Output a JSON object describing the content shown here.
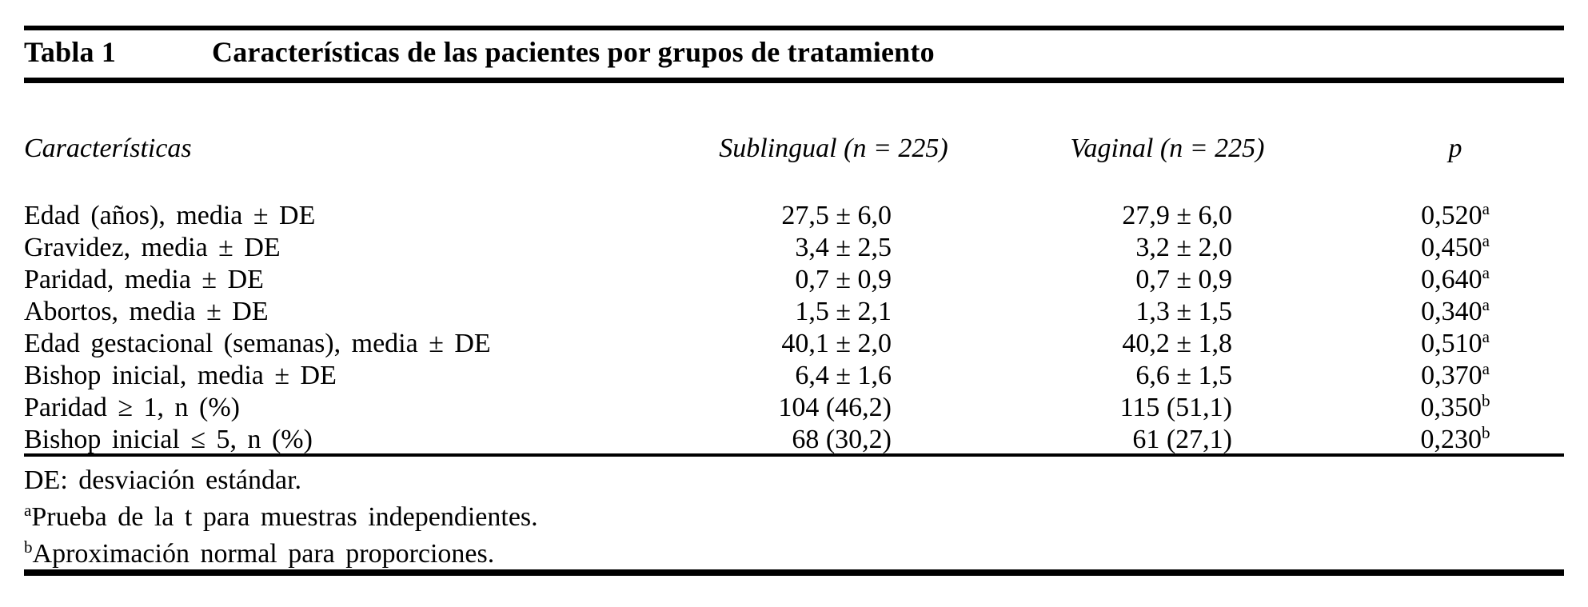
{
  "table": {
    "label": "Tabla 1",
    "title": "Características de las pacientes por grupos de tratamiento",
    "columns": {
      "characteristic": "Características",
      "sublingual": "Sublingual (n = 225)",
      "vaginal": "Vaginal (n = 225)",
      "p": "p"
    },
    "rows": [
      {
        "label": "Edad (años), media ± DE",
        "sublingual": "27,5 ± 6,0",
        "vaginal": "27,9 ± 6,0",
        "p": "0,520",
        "p_sup": "a"
      },
      {
        "label": "Gravidez, media ± DE",
        "sublingual": "3,4 ± 2,5",
        "vaginal": "3,2 ± 2,0",
        "p": "0,450",
        "p_sup": "a"
      },
      {
        "label": "Paridad, media ± DE",
        "sublingual": "0,7 ± 0,9",
        "vaginal": "0,7 ± 0,9",
        "p": "0,640",
        "p_sup": "a"
      },
      {
        "label": "Abortos, media ± DE",
        "sublingual": "1,5 ± 2,1",
        "vaginal": "1,3 ± 1,5",
        "p": "0,340",
        "p_sup": "a"
      },
      {
        "label": "Edad gestacional (semanas), media ± DE",
        "sublingual": "40,1 ± 2,0",
        "vaginal": "40,2 ± 1,8",
        "p": "0,510",
        "p_sup": "a"
      },
      {
        "label": "Bishop inicial, media ± DE",
        "sublingual": "6,4 ± 1,6",
        "vaginal": "6,6 ± 1,5",
        "p": "0,370",
        "p_sup": "a"
      },
      {
        "label": "Paridad ≥ 1, n (%)",
        "sublingual": "104 (46,2)",
        "vaginal": "115 (51,1)",
        "p": "0,350",
        "p_sup": "b"
      },
      {
        "label": "Bishop inicial ≤ 5, n (%)",
        "sublingual": "68 (30,2)",
        "vaginal": "61 (27,1)",
        "p": "0,230",
        "p_sup": "b"
      }
    ],
    "footnotes": [
      {
        "sup": "",
        "text": "DE: desviación estándar."
      },
      {
        "sup": "a",
        "text": "Prueba de la t para muestras independientes."
      },
      {
        "sup": "b",
        "text": "Aproximación normal para proporciones."
      }
    ]
  }
}
